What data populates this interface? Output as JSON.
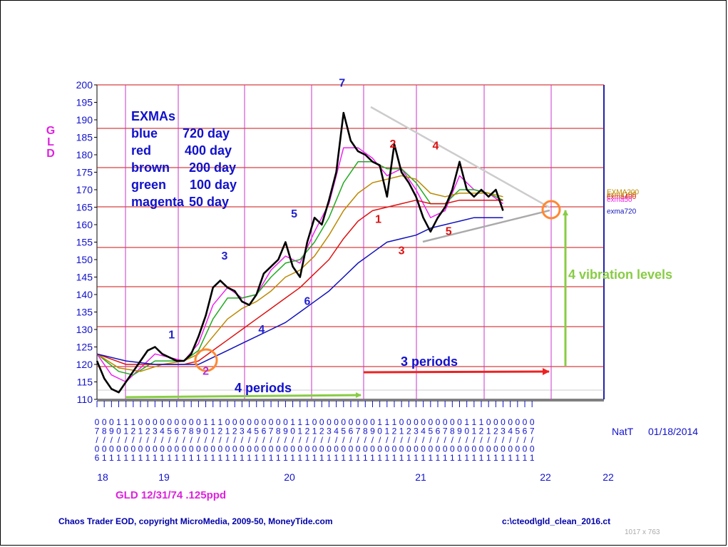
{
  "chart_data": {
    "type": "line",
    "ticker_vertical": "GLD",
    "ylim": [
      110,
      200
    ],
    "y_ticks": [
      110,
      115,
      120,
      125,
      130,
      135,
      140,
      145,
      150,
      155,
      160,
      165,
      170,
      175,
      180,
      185,
      190,
      195,
      200
    ],
    "year_labels": [
      "18",
      "19",
      "20",
      "21",
      "22",
      "22"
    ],
    "month_labels": [
      "07/06",
      "08/01",
      "09/01",
      "10/01",
      "11/01",
      "12/01",
      "01/01",
      "02/01",
      "03/01",
      "04/01",
      "05/01",
      "06/01",
      "07/01",
      "08/01",
      "09/01",
      "10/01",
      "11/01",
      "12/01",
      "01/01",
      "02/01",
      "03/01",
      "04/01",
      "05/01",
      "06/01",
      "07/01",
      "08/01",
      "09/01",
      "10/01",
      "11/01",
      "12/01",
      "01/01",
      "02/01",
      "03/01",
      "04/01",
      "05/01",
      "06/01",
      "07/01",
      "08/01",
      "09/01",
      "10/01",
      "11/01",
      "12/01",
      "01/01",
      "02/01",
      "03/01",
      "04/01",
      "05/01",
      "06/01",
      "07/01",
      "08/01",
      "09/01",
      "10/01",
      "11/01",
      "12/01",
      "01/01",
      "02/01",
      "03/01",
      "04/01",
      "05/01",
      "06/01",
      "07/01"
    ],
    "series": [
      {
        "name": "GLD",
        "color": "#000000",
        "points": [
          [
            0,
            121
          ],
          [
            1,
            116
          ],
          [
            2,
            113
          ],
          [
            3,
            112
          ],
          [
            4,
            115
          ],
          [
            5,
            118
          ],
          [
            6,
            121
          ],
          [
            7,
            124
          ],
          [
            8,
            125
          ],
          [
            9,
            123
          ],
          [
            10,
            122
          ],
          [
            11,
            121
          ],
          [
            12,
            121
          ],
          [
            13,
            123
          ],
          [
            14,
            128
          ],
          [
            15,
            134
          ],
          [
            16,
            142
          ],
          [
            17,
            144
          ],
          [
            18,
            142
          ],
          [
            19,
            141
          ],
          [
            20,
            138
          ],
          [
            21,
            137
          ],
          [
            22,
            140
          ],
          [
            23,
            146
          ],
          [
            24,
            148
          ],
          [
            25,
            150
          ],
          [
            26,
            155
          ],
          [
            27,
            148
          ],
          [
            28,
            145
          ],
          [
            29,
            155
          ],
          [
            30,
            162
          ],
          [
            31,
            160
          ],
          [
            32,
            167
          ],
          [
            33,
            175
          ],
          [
            34,
            192
          ],
          [
            35,
            184
          ],
          [
            36,
            181
          ],
          [
            37,
            180
          ],
          [
            38,
            178
          ],
          [
            39,
            177
          ],
          [
            40,
            168
          ],
          [
            41,
            183
          ],
          [
            42,
            175
          ],
          [
            43,
            172
          ],
          [
            44,
            168
          ],
          [
            45,
            162
          ],
          [
            46,
            158
          ],
          [
            47,
            162
          ],
          [
            48,
            165
          ],
          [
            49,
            170
          ],
          [
            50,
            178
          ],
          [
            51,
            170
          ],
          [
            52,
            168
          ],
          [
            53,
            170
          ],
          [
            54,
            168
          ],
          [
            55,
            170
          ],
          [
            56,
            164
          ]
        ]
      },
      {
        "name": "magenta 50 day",
        "color": "#ee22ee",
        "points": [
          [
            0,
            123
          ],
          [
            2,
            117
          ],
          [
            4,
            115
          ],
          [
            6,
            119
          ],
          [
            8,
            123
          ],
          [
            10,
            122
          ],
          [
            12,
            121
          ],
          [
            14,
            126
          ],
          [
            16,
            137
          ],
          [
            18,
            142
          ],
          [
            20,
            139
          ],
          [
            22,
            140
          ],
          [
            24,
            147
          ],
          [
            26,
            151
          ],
          [
            28,
            149
          ],
          [
            30,
            158
          ],
          [
            32,
            166
          ],
          [
            34,
            182
          ],
          [
            36,
            182
          ],
          [
            38,
            179
          ],
          [
            40,
            174
          ],
          [
            42,
            176
          ],
          [
            44,
            170
          ],
          [
            46,
            162
          ],
          [
            48,
            164
          ],
          [
            50,
            174
          ],
          [
            52,
            170
          ],
          [
            54,
            169
          ],
          [
            56,
            166
          ]
        ]
      },
      {
        "name": "green 100 day",
        "color": "#22aa22",
        "points": [
          [
            0,
            123
          ],
          [
            3,
            118
          ],
          [
            5,
            117
          ],
          [
            8,
            121
          ],
          [
            10,
            121
          ],
          [
            12,
            121
          ],
          [
            14,
            124
          ],
          [
            16,
            133
          ],
          [
            18,
            139
          ],
          [
            20,
            139
          ],
          [
            22,
            140
          ],
          [
            24,
            145
          ],
          [
            26,
            149
          ],
          [
            28,
            150
          ],
          [
            30,
            155
          ],
          [
            32,
            162
          ],
          [
            34,
            172
          ],
          [
            36,
            178
          ],
          [
            38,
            178
          ],
          [
            40,
            176
          ],
          [
            42,
            176
          ],
          [
            44,
            172
          ],
          [
            46,
            166
          ],
          [
            48,
            166
          ],
          [
            50,
            170
          ],
          [
            52,
            170
          ],
          [
            54,
            169
          ],
          [
            56,
            167
          ]
        ]
      },
      {
        "name": "brown 200 day",
        "color": "#bb8800",
        "points": [
          [
            0,
            123
          ],
          [
            3,
            119
          ],
          [
            6,
            118
          ],
          [
            9,
            120
          ],
          [
            12,
            121
          ],
          [
            14,
            123
          ],
          [
            16,
            128
          ],
          [
            18,
            133
          ],
          [
            20,
            136
          ],
          [
            22,
            138
          ],
          [
            24,
            141
          ],
          [
            26,
            145
          ],
          [
            28,
            147
          ],
          [
            30,
            151
          ],
          [
            32,
            157
          ],
          [
            34,
            164
          ],
          [
            36,
            169
          ],
          [
            38,
            172
          ],
          [
            40,
            173
          ],
          [
            42,
            174
          ],
          [
            44,
            173
          ],
          [
            46,
            169
          ],
          [
            48,
            168
          ],
          [
            50,
            169
          ],
          [
            52,
            169
          ],
          [
            54,
            169
          ],
          [
            56,
            168
          ]
        ]
      },
      {
        "name": "red 400 day",
        "color": "#dd1111",
        "points": [
          [
            0,
            123
          ],
          [
            4,
            120
          ],
          [
            8,
            120
          ],
          [
            12,
            120
          ],
          [
            14,
            121
          ],
          [
            16,
            124
          ],
          [
            18,
            127
          ],
          [
            20,
            130
          ],
          [
            22,
            133
          ],
          [
            24,
            136
          ],
          [
            26,
            139
          ],
          [
            28,
            142
          ],
          [
            30,
            146
          ],
          [
            32,
            150
          ],
          [
            34,
            156
          ],
          [
            36,
            161
          ],
          [
            38,
            164
          ],
          [
            40,
            165
          ],
          [
            42,
            166
          ],
          [
            44,
            167
          ],
          [
            46,
            166
          ],
          [
            48,
            166
          ],
          [
            50,
            167
          ],
          [
            52,
            167
          ],
          [
            54,
            167
          ],
          [
            56,
            167
          ]
        ]
      },
      {
        "name": "blue 720 day",
        "color": "#1111bb",
        "points": [
          [
            0,
            123
          ],
          [
            4,
            121
          ],
          [
            8,
            120
          ],
          [
            12,
            120
          ],
          [
            14,
            120
          ],
          [
            16,
            122
          ],
          [
            18,
            124
          ],
          [
            20,
            126
          ],
          [
            22,
            128
          ],
          [
            24,
            130
          ],
          [
            26,
            132
          ],
          [
            28,
            135
          ],
          [
            30,
            138
          ],
          [
            32,
            141
          ],
          [
            34,
            145
          ],
          [
            36,
            149
          ],
          [
            38,
            152
          ],
          [
            40,
            155
          ],
          [
            42,
            156
          ],
          [
            44,
            157
          ],
          [
            46,
            159
          ],
          [
            48,
            160
          ],
          [
            50,
            161
          ],
          [
            52,
            162
          ],
          [
            54,
            162
          ],
          [
            56,
            162
          ]
        ]
      }
    ],
    "right_labels": [
      {
        "text": "EXMA200",
        "y": 169.5,
        "color": "#bb8800"
      },
      {
        "text": "exma100",
        "y": 168.8,
        "color": "#bb8800"
      },
      {
        "text": "exma400",
        "y": 168.2,
        "color": "#dd1111"
      },
      {
        "text": "exma50",
        "y": 167.3,
        "color": "#ee22ee"
      },
      {
        "text": "exma720",
        "y": 164.0,
        "color": "#1111bb"
      }
    ],
    "legend": {
      "title": "EXMAs",
      "rows": [
        {
          "name": "blue",
          "val": "720 day"
        },
        {
          "name": "red",
          "val": "400 day"
        },
        {
          "name": "brown",
          "val": "200 day"
        },
        {
          "name": "green",
          "val": "100 day"
        },
        {
          "name": "magenta",
          "val": "50 day"
        }
      ]
    },
    "wave_labels": [
      {
        "text": "1",
        "x": 10.3,
        "y": 127.5,
        "color": "#2222cc"
      },
      {
        "text": "2",
        "x": 15.0,
        "y": 117.0,
        "color": "#aa33dd"
      },
      {
        "text": "3",
        "x": 17.6,
        "y": 150.0,
        "color": "#2222cc"
      },
      {
        "text": "4",
        "x": 22.7,
        "y": 129.0,
        "color": "#2222cc"
      },
      {
        "text": "5",
        "x": 27.2,
        "y": 162.0,
        "color": "#2222cc"
      },
      {
        "text": "6",
        "x": 29.0,
        "y": 137.0,
        "color": "#2222cc"
      },
      {
        "text": "7",
        "x": 33.8,
        "y": 199.5,
        "color": "#2222cc"
      },
      {
        "text": "1",
        "x": 38.8,
        "y": 160.5,
        "color": "#dd1111"
      },
      {
        "text": "2",
        "x": 40.8,
        "y": 182.0,
        "color": "#dd1111"
      },
      {
        "text": "3",
        "x": 42.0,
        "y": 151.5,
        "color": "#dd1111"
      },
      {
        "text": "4",
        "x": 46.7,
        "y": 181.5,
        "color": "#dd1111"
      },
      {
        "text": "5",
        "x": 48.5,
        "y": 157.0,
        "color": "#dd1111"
      }
    ],
    "annotations": {
      "periods_4": "4 periods",
      "periods_3": "3 periods",
      "vibration": "4 vibration levels",
      "natt": "NatT",
      "date": "01/18/2014"
    }
  },
  "footer": {
    "gld_scale": "GLD 12/31/74  .125ppd",
    "copyright": "Chaos Trader EOD, copyright MicroMedia, 2009-50, MoneyTide.com",
    "file": "c:\\cteod\\gld_clean_2016.ct",
    "size": "1017 x 763"
  }
}
